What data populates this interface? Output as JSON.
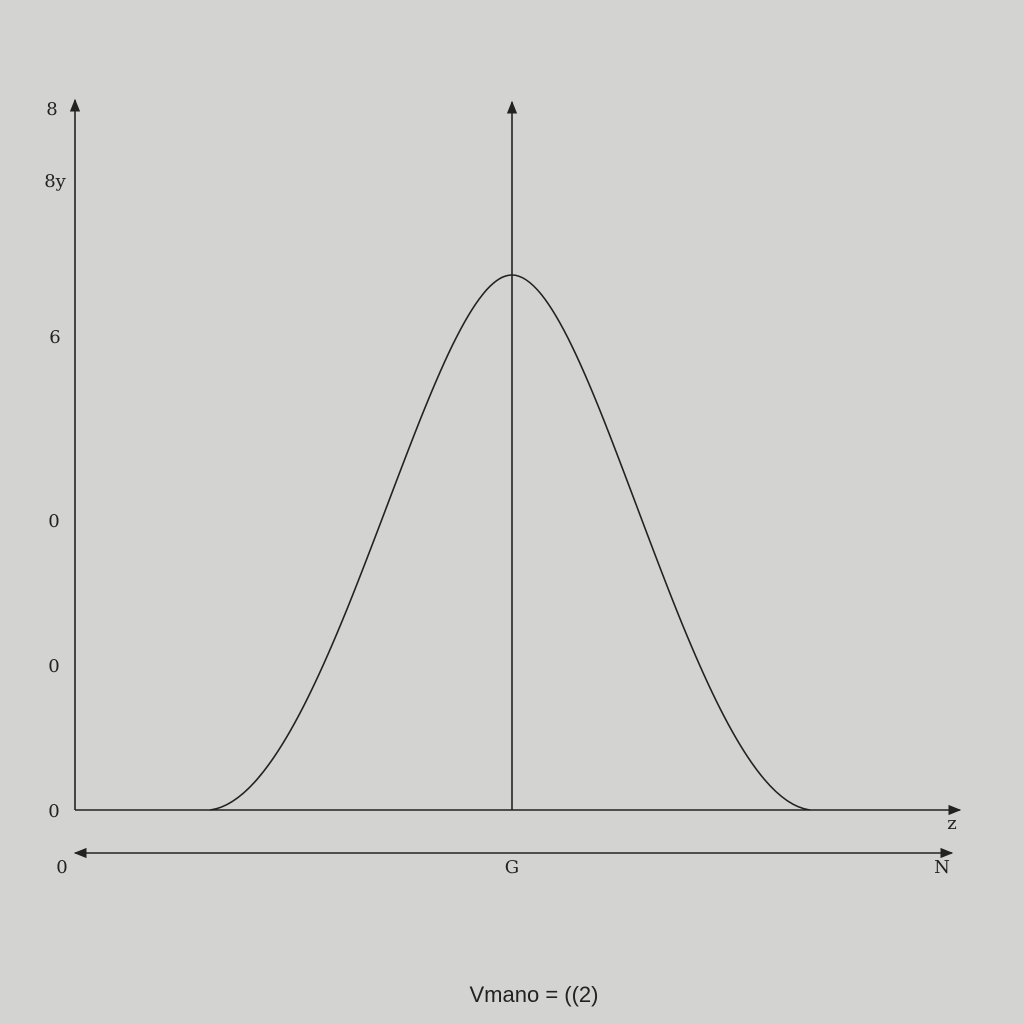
{
  "y_axis": {
    "labels": [
      "8",
      "8y",
      "6",
      "0",
      "0",
      "0"
    ]
  },
  "x_axis": {
    "labels": [
      "0",
      "G",
      "N"
    ],
    "end_label": "z"
  },
  "caption": "Vmano = ((2)"
}
